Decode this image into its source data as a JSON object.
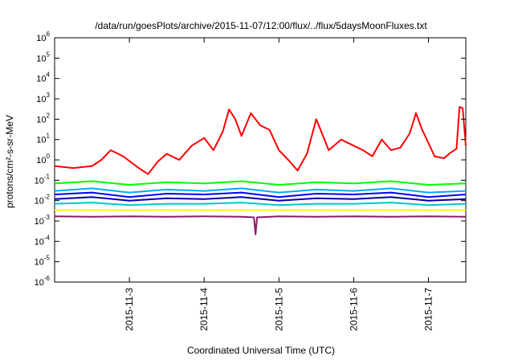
{
  "chart_data": {
    "type": "line",
    "title": "/data/run/goesPlots/archive/2015-11-07/12:00/flux/../flux/5daysMoonFluxes.txt",
    "xlabel": "Coordinated Universal Time (UTC)",
    "ylabel": "protons/cm²-s-sr-MeV",
    "y_scale": "log",
    "ylim": [
      1e-06,
      1000000.0
    ],
    "y_ticks": [
      {
        "value": 1e-06,
        "base": "10",
        "exp": "-6"
      },
      {
        "value": 1e-05,
        "base": "10",
        "exp": "-5"
      },
      {
        "value": 0.0001,
        "base": "10",
        "exp": "-4"
      },
      {
        "value": 0.001,
        "base": "10",
        "exp": "-3"
      },
      {
        "value": 0.01,
        "base": "10",
        "exp": "-2"
      },
      {
        "value": 0.1,
        "base": "10",
        "exp": "-1"
      },
      {
        "value": 1.0,
        "base": "10",
        "exp": "0"
      },
      {
        "value": 10.0,
        "base": "10",
        "exp": "1"
      },
      {
        "value": 100.0,
        "base": "10",
        "exp": "2"
      },
      {
        "value": 1000.0,
        "base": "10",
        "exp": "3"
      },
      {
        "value": 10000.0,
        "base": "10",
        "exp": "4"
      },
      {
        "value": 100000.0,
        "base": "10",
        "exp": "5"
      },
      {
        "value": 1000000.0,
        "base": "10",
        "exp": "6"
      }
    ],
    "xlim": [
      "2015-11-02T00:00",
      "2015-11-07T12:00"
    ],
    "x_ticks": [
      "2015-11-3",
      "2015-11-4",
      "2015-11-5",
      "2015-11-6",
      "2015-11-7"
    ],
    "x_tick_values": [
      "2015-11-03T00:00",
      "2015-11-04T00:00",
      "2015-11-05T00:00",
      "2015-11-06T00:00",
      "2015-11-07T00:00"
    ],
    "grid": false,
    "series": [
      {
        "color": "#ff0000",
        "x": [
          "2015-11-02T00:00",
          "2015-11-02T06:00",
          "2015-11-02T12:00",
          "2015-11-02T15:00",
          "2015-11-02T18:00",
          "2015-11-02T22:00",
          "2015-11-03T03:00",
          "2015-11-03T06:00",
          "2015-11-03T09:00",
          "2015-11-03T12:00",
          "2015-11-03T16:00",
          "2015-11-03T20:00",
          "2015-11-04T00:00",
          "2015-11-04T03:00",
          "2015-11-04T06:00",
          "2015-11-04T08:00",
          "2015-11-04T10:00",
          "2015-11-04T12:00",
          "2015-11-04T15:00",
          "2015-11-04T18:00",
          "2015-11-04T21:00",
          "2015-11-05T00:00",
          "2015-11-05T03:00",
          "2015-11-05T06:00",
          "2015-11-05T09:00",
          "2015-11-05T12:00",
          "2015-11-05T16:00",
          "2015-11-05T20:00",
          "2015-11-06T00:00",
          "2015-11-06T03:00",
          "2015-11-06T06:00",
          "2015-11-06T09:00",
          "2015-11-06T12:00",
          "2015-11-06T15:00",
          "2015-11-06T18:00",
          "2015-11-06T20:00",
          "2015-11-06T22:00",
          "2015-11-07T02:00",
          "2015-11-07T05:00",
          "2015-11-07T07:00",
          "2015-11-07T09:00",
          "2015-11-07T10:00",
          "2015-11-07T11:00",
          "2015-11-07T12:00"
        ],
        "values": [
          0.5,
          0.4,
          0.5,
          1.0,
          3.0,
          1.5,
          0.4,
          0.2,
          0.8,
          2.0,
          1.0,
          5.0,
          12,
          3,
          25,
          300,
          100,
          15,
          200,
          50,
          30,
          3,
          1,
          0.3,
          2,
          100,
          3,
          10,
          5,
          3,
          1.5,
          10,
          3,
          4,
          20,
          200,
          30,
          1.5,
          1.2,
          2.2,
          3.5,
          400,
          350,
          5
        ]
      },
      {
        "color": "#00ff00",
        "x": [
          "2015-11-02T00:00",
          "2015-11-02T12:00",
          "2015-11-03T00:00",
          "2015-11-03T12:00",
          "2015-11-04T00:00",
          "2015-11-04T12:00",
          "2015-11-05T00:00",
          "2015-11-05T12:00",
          "2015-11-06T00:00",
          "2015-11-06T12:00",
          "2015-11-07T00:00",
          "2015-11-07T12:00"
        ],
        "values": [
          0.07,
          0.09,
          0.06,
          0.08,
          0.07,
          0.09,
          0.06,
          0.08,
          0.07,
          0.09,
          0.06,
          0.07
        ]
      },
      {
        "color": "#00aaff",
        "x": [
          "2015-11-02T00:00",
          "2015-11-02T12:00",
          "2015-11-03T00:00",
          "2015-11-03T12:00",
          "2015-11-04T00:00",
          "2015-11-04T12:00",
          "2015-11-05T00:00",
          "2015-11-05T12:00",
          "2015-11-06T00:00",
          "2015-11-06T12:00",
          "2015-11-07T00:00",
          "2015-11-07T12:00"
        ],
        "values": [
          0.03,
          0.04,
          0.025,
          0.035,
          0.03,
          0.04,
          0.025,
          0.035,
          0.03,
          0.04,
          0.025,
          0.03
        ]
      },
      {
        "color": "#0000ff",
        "x": [
          "2015-11-02T00:00",
          "2015-11-02T12:00",
          "2015-11-03T00:00",
          "2015-11-03T12:00",
          "2015-11-04T00:00",
          "2015-11-04T12:00",
          "2015-11-05T00:00",
          "2015-11-05T12:00",
          "2015-11-06T00:00",
          "2015-11-06T12:00",
          "2015-11-07T00:00",
          "2015-11-07T12:00"
        ],
        "values": [
          0.02,
          0.025,
          0.015,
          0.022,
          0.02,
          0.025,
          0.015,
          0.022,
          0.02,
          0.025,
          0.015,
          0.02
        ]
      },
      {
        "color": "#0000aa",
        "x": [
          "2015-11-02T00:00",
          "2015-11-02T12:00",
          "2015-11-03T00:00",
          "2015-11-03T12:00",
          "2015-11-04T00:00",
          "2015-11-04T12:00",
          "2015-11-05T00:00",
          "2015-11-05T12:00",
          "2015-11-06T00:00",
          "2015-11-06T12:00",
          "2015-11-07T00:00",
          "2015-11-07T12:00"
        ],
        "values": [
          0.012,
          0.015,
          0.01,
          0.013,
          0.012,
          0.015,
          0.01,
          0.013,
          0.012,
          0.015,
          0.01,
          0.012
        ]
      },
      {
        "color": "#00c8c8",
        "x": [
          "2015-11-02T00:00",
          "2015-11-02T12:00",
          "2015-11-03T00:00",
          "2015-11-03T12:00",
          "2015-11-04T00:00",
          "2015-11-04T12:00",
          "2015-11-05T00:00",
          "2015-11-05T12:00",
          "2015-11-06T00:00",
          "2015-11-06T12:00",
          "2015-11-07T00:00",
          "2015-11-07T12:00"
        ],
        "values": [
          0.007,
          0.008,
          0.006,
          0.007,
          0.007,
          0.008,
          0.006,
          0.007,
          0.007,
          0.008,
          0.006,
          0.007
        ]
      },
      {
        "color": "#ffff00",
        "x": [
          "2015-11-02T00:00",
          "2015-11-02T12:00",
          "2015-11-03T00:00",
          "2015-11-03T12:00",
          "2015-11-04T00:00",
          "2015-11-04T12:00",
          "2015-11-05T00:00",
          "2015-11-05T12:00",
          "2015-11-06T00:00",
          "2015-11-06T12:00",
          "2015-11-07T00:00",
          "2015-11-07T12:00"
        ],
        "values": [
          0.0035,
          0.0035,
          0.0034,
          0.0035,
          0.0035,
          0.0034,
          0.0035,
          0.0035,
          0.0034,
          0.0035,
          0.0035,
          0.0035
        ]
      },
      {
        "color": "#8b1a6b",
        "x": [
          "2015-11-02T00:00",
          "2015-11-02T12:00",
          "2015-11-03T00:00",
          "2015-11-03T12:00",
          "2015-11-04T00:00",
          "2015-11-04T12:00",
          "2015-11-04T16:00",
          "2015-11-04T16:30",
          "2015-11-04T17:00",
          "2015-11-05T00:00",
          "2015-11-05T12:00",
          "2015-11-06T00:00",
          "2015-11-06T12:00",
          "2015-11-07T00:00",
          "2015-11-07T12:00"
        ],
        "values": [
          0.0017,
          0.0016,
          0.0017,
          0.0016,
          0.0017,
          0.0016,
          0.0015,
          0.00022,
          0.0015,
          0.0017,
          0.0016,
          0.0017,
          0.0016,
          0.0017,
          0.0016
        ]
      }
    ]
  }
}
